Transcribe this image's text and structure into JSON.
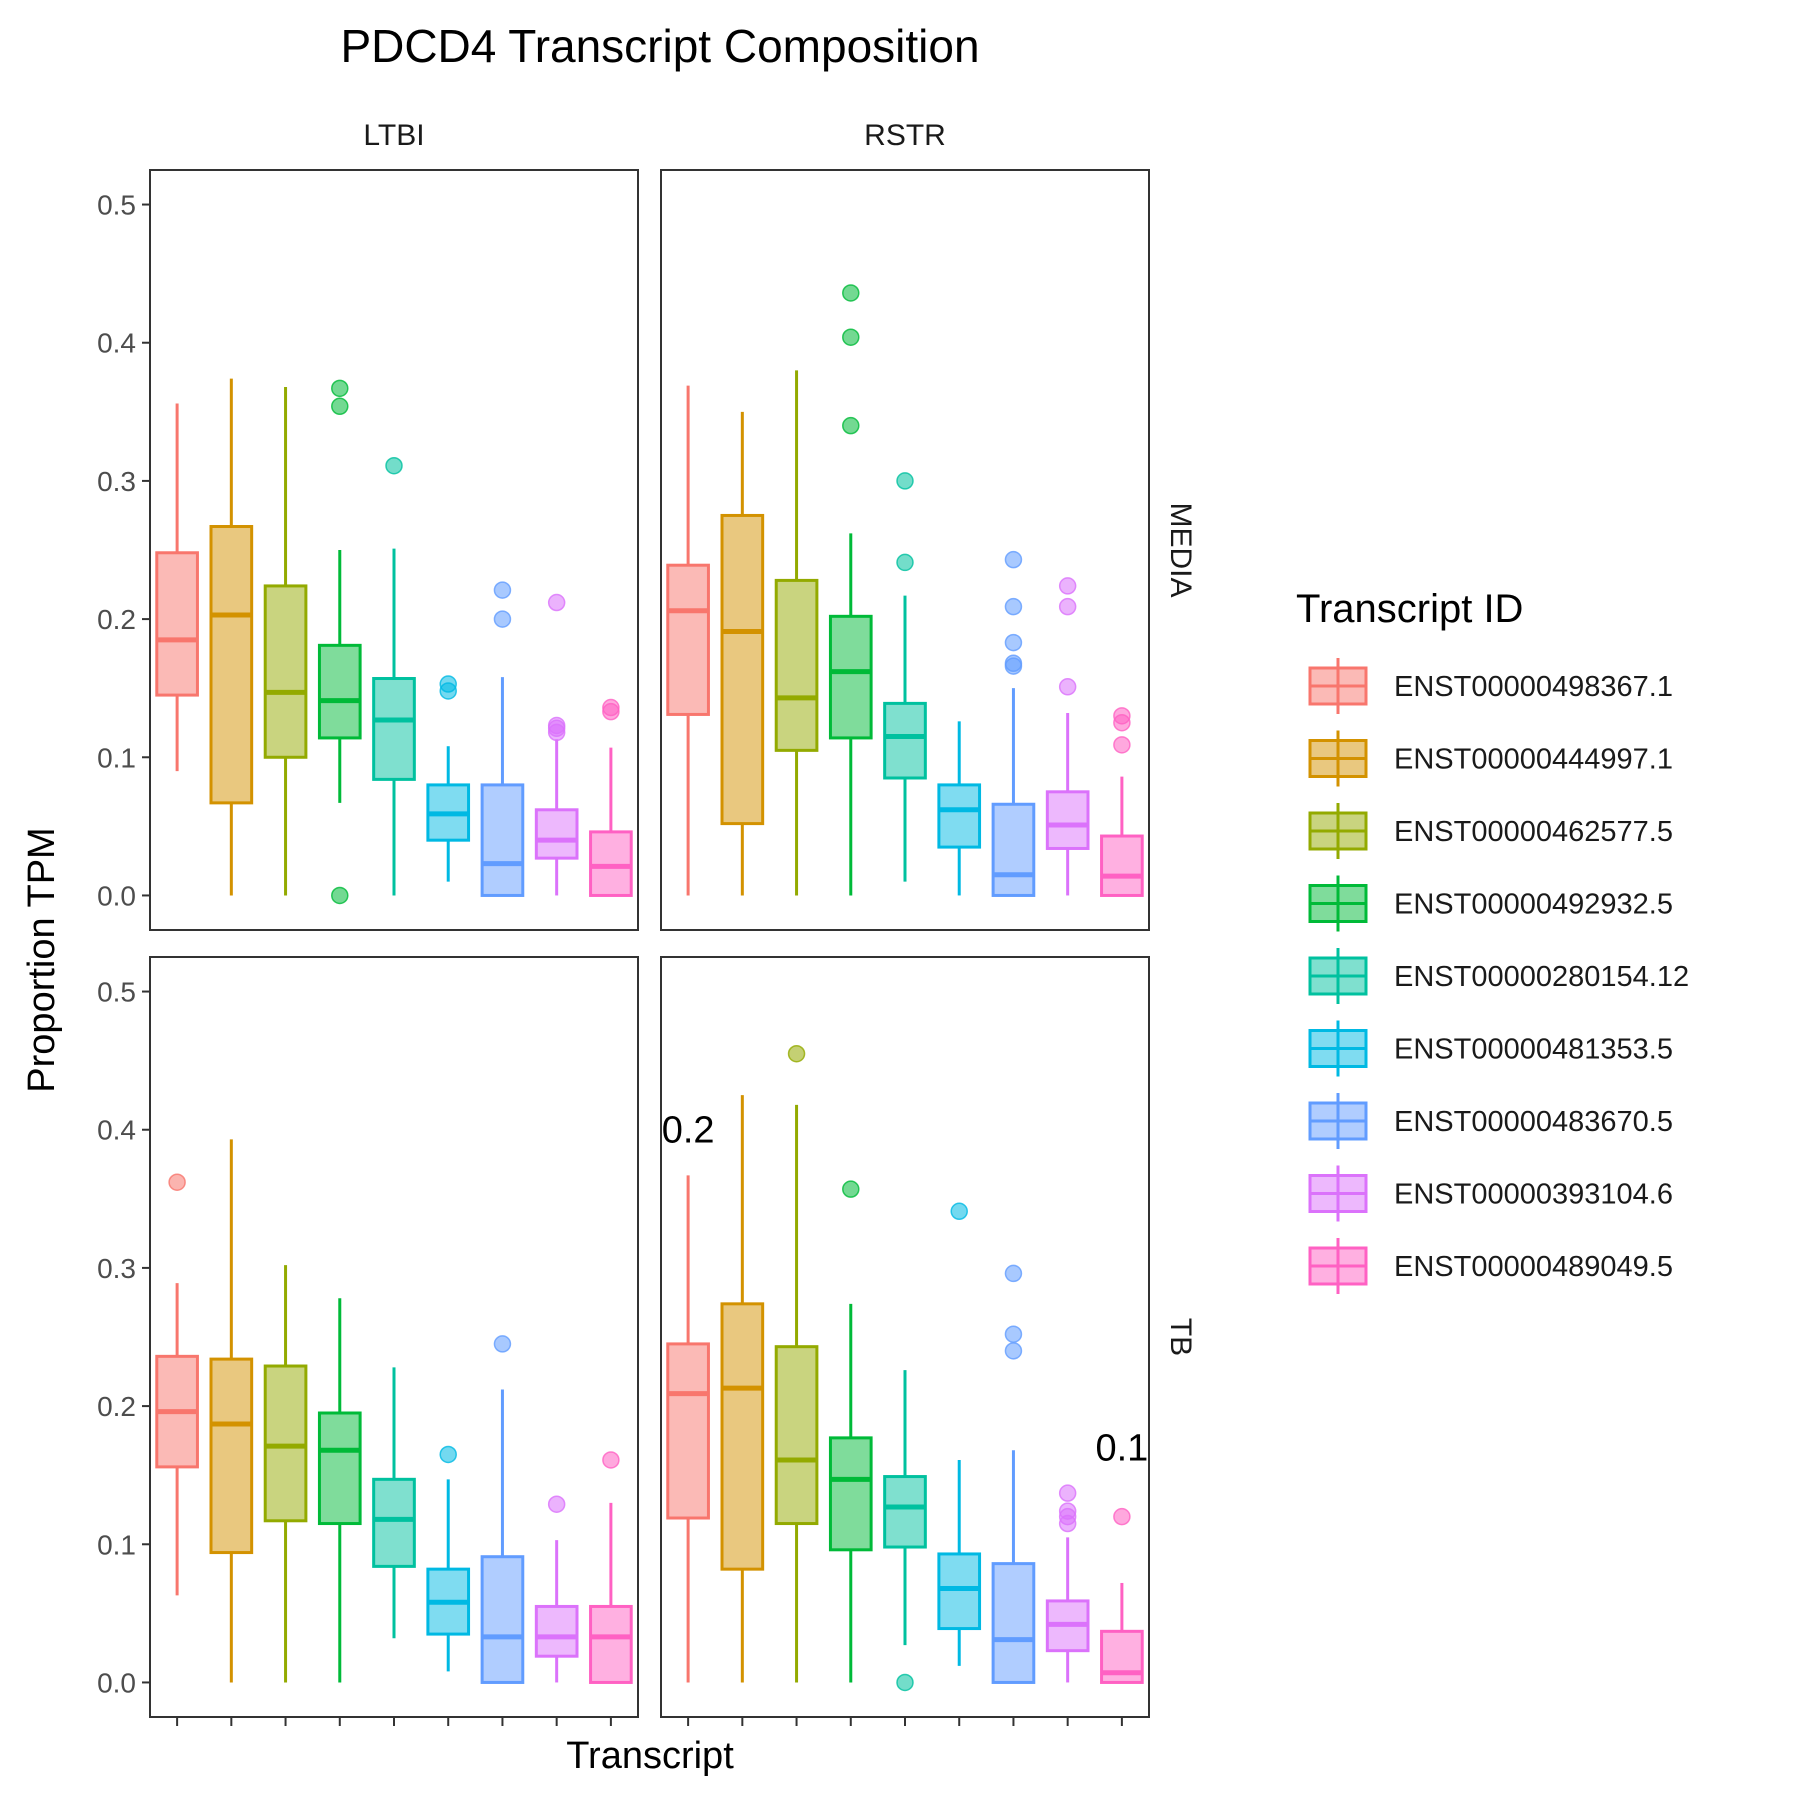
{
  "chart_data": {
    "type": "boxplot",
    "title": "PDCD4 Transcript Composition",
    "xlabel": "Transcript",
    "ylabel": "Proportion TPM",
    "ylim": [
      -0.025,
      0.525
    ],
    "yticks": [
      0.0,
      0.1,
      0.2,
      0.3,
      0.4,
      0.5
    ],
    "ytick_labels": [
      "0.0",
      "0.1",
      "0.2",
      "0.3",
      "0.4",
      "0.5"
    ],
    "facet_cols": [
      "LTBI",
      "RSTR"
    ],
    "facet_rows": [
      "MEDIA",
      "TB"
    ],
    "legend": {
      "title": "Transcript ID",
      "position": "right",
      "entries": [
        {
          "label": "ENST00000498367.1",
          "color": "#F8766D"
        },
        {
          "label": "ENST00000444997.1",
          "color": "#D39200"
        },
        {
          "label": "ENST00000462577.5",
          "color": "#93AA00"
        },
        {
          "label": "ENST00000492932.5",
          "color": "#00BA38"
        },
        {
          "label": "ENST00000280154.12",
          "color": "#00C19F"
        },
        {
          "label": "ENST00000481353.5",
          "color": "#00B9E3"
        },
        {
          "label": "ENST00000483670.5",
          "color": "#619CFF"
        },
        {
          "label": "ENST00000393104.6",
          "color": "#DB72FB"
        },
        {
          "label": "ENST00000489049.5",
          "color": "#FF61C3"
        }
      ]
    },
    "panels": [
      {
        "col": "LTBI",
        "row": "MEDIA",
        "annotations": [],
        "boxes": [
          {
            "lw": 0.09,
            "q1": 0.145,
            "med": 0.185,
            "q3": 0.248,
            "uw": 0.356,
            "out": []
          },
          {
            "lw": 0.0,
            "q1": 0.067,
            "med": 0.203,
            "q3": 0.267,
            "uw": 0.374,
            "out": []
          },
          {
            "lw": 0.0,
            "q1": 0.1,
            "med": 0.147,
            "q3": 0.224,
            "uw": 0.368,
            "out": []
          },
          {
            "lw": 0.067,
            "q1": 0.114,
            "med": 0.141,
            "q3": 0.181,
            "uw": 0.25,
            "out": [
              0.367,
              0.354,
              0.0
            ]
          },
          {
            "lw": 0.0,
            "q1": 0.084,
            "med": 0.127,
            "q3": 0.157,
            "uw": 0.251,
            "out": [
              0.311
            ]
          },
          {
            "lw": 0.01,
            "q1": 0.04,
            "med": 0.059,
            "q3": 0.08,
            "uw": 0.108,
            "out": [
              0.153,
              0.148
            ]
          },
          {
            "lw": 0.0,
            "q1": 0.0,
            "med": 0.023,
            "q3": 0.08,
            "uw": 0.158,
            "out": [
              0.221,
              0.2
            ]
          },
          {
            "lw": 0.0,
            "q1": 0.027,
            "med": 0.04,
            "q3": 0.062,
            "uw": 0.113,
            "out": [
              0.212,
              0.123,
              0.121,
              0.118
            ]
          },
          {
            "lw": 0.0,
            "q1": 0.0,
            "med": 0.021,
            "q3": 0.046,
            "uw": 0.107,
            "out": [
              0.136,
              0.133
            ]
          }
        ]
      },
      {
        "col": "RSTR",
        "row": "MEDIA",
        "annotations": [],
        "boxes": [
          {
            "lw": 0.0,
            "q1": 0.131,
            "med": 0.206,
            "q3": 0.239,
            "uw": 0.369,
            "out": []
          },
          {
            "lw": 0.0,
            "q1": 0.052,
            "med": 0.191,
            "q3": 0.275,
            "uw": 0.35,
            "out": []
          },
          {
            "lw": 0.0,
            "q1": 0.105,
            "med": 0.143,
            "q3": 0.228,
            "uw": 0.38,
            "out": []
          },
          {
            "lw": 0.0,
            "q1": 0.114,
            "med": 0.162,
            "q3": 0.202,
            "uw": 0.262,
            "out": [
              0.436,
              0.404,
              0.34
            ]
          },
          {
            "lw": 0.01,
            "q1": 0.085,
            "med": 0.115,
            "q3": 0.139,
            "uw": 0.217,
            "out": [
              0.3,
              0.241
            ]
          },
          {
            "lw": 0.0,
            "q1": 0.035,
            "med": 0.062,
            "q3": 0.08,
            "uw": 0.126,
            "out": []
          },
          {
            "lw": 0.0,
            "q1": 0.0,
            "med": 0.015,
            "q3": 0.066,
            "uw": 0.15,
            "out": [
              0.243,
              0.209,
              0.183,
              0.168,
              0.166
            ]
          },
          {
            "lw": 0.0,
            "q1": 0.034,
            "med": 0.051,
            "q3": 0.075,
            "uw": 0.132,
            "out": [
              0.224,
              0.209,
              0.151
            ]
          },
          {
            "lw": 0.0,
            "q1": 0.0,
            "med": 0.014,
            "q3": 0.043,
            "uw": 0.086,
            "out": [
              0.13,
              0.125,
              0.109
            ]
          }
        ]
      },
      {
        "col": "LTBI",
        "row": "TB",
        "annotations": [],
        "boxes": [
          {
            "lw": 0.063,
            "q1": 0.156,
            "med": 0.196,
            "q3": 0.236,
            "uw": 0.289,
            "out": [
              0.362
            ]
          },
          {
            "lw": 0.0,
            "q1": 0.094,
            "med": 0.187,
            "q3": 0.234,
            "uw": 0.393,
            "out": []
          },
          {
            "lw": 0.0,
            "q1": 0.117,
            "med": 0.171,
            "q3": 0.229,
            "uw": 0.302,
            "out": []
          },
          {
            "lw": 0.0,
            "q1": 0.115,
            "med": 0.168,
            "q3": 0.195,
            "uw": 0.278,
            "out": []
          },
          {
            "lw": 0.032,
            "q1": 0.084,
            "med": 0.118,
            "q3": 0.147,
            "uw": 0.228,
            "out": []
          },
          {
            "lw": 0.008,
            "q1": 0.035,
            "med": 0.058,
            "q3": 0.082,
            "uw": 0.147,
            "out": [
              0.165
            ]
          },
          {
            "lw": 0.0,
            "q1": 0.0,
            "med": 0.033,
            "q3": 0.091,
            "uw": 0.212,
            "out": [
              0.245
            ]
          },
          {
            "lw": 0.0,
            "q1": 0.019,
            "med": 0.033,
            "q3": 0.055,
            "uw": 0.103,
            "out": [
              0.129
            ]
          },
          {
            "lw": 0.0,
            "q1": 0.0,
            "med": 0.033,
            "q3": 0.055,
            "uw": 0.13,
            "out": [
              0.161
            ]
          }
        ]
      },
      {
        "col": "RSTR",
        "row": "TB",
        "annotations": [
          {
            "text": "0.2",
            "x": 1,
            "y": 0.4
          },
          {
            "text": "0.1",
            "x": 9,
            "y": 0.17
          }
        ],
        "boxes": [
          {
            "lw": 0.0,
            "q1": 0.119,
            "med": 0.209,
            "q3": 0.245,
            "uw": 0.367,
            "out": []
          },
          {
            "lw": 0.0,
            "q1": 0.082,
            "med": 0.213,
            "q3": 0.274,
            "uw": 0.425,
            "out": []
          },
          {
            "lw": 0.0,
            "q1": 0.115,
            "med": 0.161,
            "q3": 0.243,
            "uw": 0.418,
            "out": [
              0.455
            ]
          },
          {
            "lw": 0.0,
            "q1": 0.096,
            "med": 0.147,
            "q3": 0.177,
            "uw": 0.274,
            "out": [
              0.357
            ]
          },
          {
            "lw": 0.027,
            "q1": 0.098,
            "med": 0.127,
            "q3": 0.149,
            "uw": 0.226,
            "out": [
              0.0
            ]
          },
          {
            "lw": 0.012,
            "q1": 0.039,
            "med": 0.068,
            "q3": 0.093,
            "uw": 0.161,
            "out": [
              0.341
            ]
          },
          {
            "lw": 0.0,
            "q1": 0.0,
            "med": 0.031,
            "q3": 0.086,
            "uw": 0.168,
            "out": [
              0.296,
              0.252,
              0.24
            ]
          },
          {
            "lw": 0.0,
            "q1": 0.023,
            "med": 0.042,
            "q3": 0.059,
            "uw": 0.105,
            "out": [
              0.137,
              0.124,
              0.12,
              0.115
            ]
          },
          {
            "lw": 0.0,
            "q1": 0.0,
            "med": 0.007,
            "q3": 0.037,
            "uw": 0.072,
            "out": [
              0.12
            ]
          }
        ]
      }
    ]
  }
}
